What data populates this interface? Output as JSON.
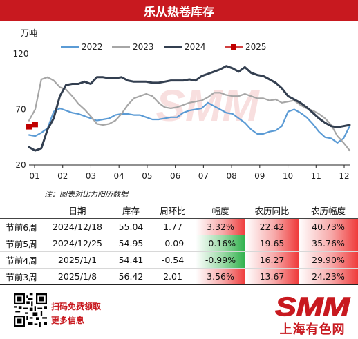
{
  "header": {
    "title": "乐从热卷库存"
  },
  "chart_data": {
    "type": "line",
    "ylabel": "万吨",
    "ylim": [
      20,
      120
    ],
    "yticks": [
      20,
      70,
      120
    ],
    "xlim": [
      1,
      53
    ],
    "x_tick_labels": [
      "01",
      "02",
      "03",
      "04",
      "05",
      "06",
      "07",
      "08",
      "09",
      "10",
      "11",
      "12"
    ],
    "legend_position": "top",
    "watermark": "SMM",
    "series": [
      {
        "name": "2022",
        "color": "#5b9bd5",
        "width": 2.2,
        "marker": false,
        "x": [
          1,
          2,
          3,
          4,
          5,
          6,
          7,
          8,
          9,
          10,
          11,
          12,
          13,
          14,
          15,
          16,
          17,
          18,
          19,
          20,
          21,
          22,
          23,
          24,
          25,
          26,
          27,
          28,
          29,
          30,
          31,
          32,
          33,
          34,
          35,
          36,
          37,
          38,
          39,
          40,
          41,
          42,
          43,
          44,
          45,
          46,
          47,
          48,
          49,
          50,
          51,
          52,
          53
        ],
        "values": [
          47,
          46,
          49,
          53,
          68,
          71,
          69,
          67,
          66,
          64,
          62,
          60,
          61,
          62,
          65,
          66,
          66,
          65,
          65,
          63,
          61,
          61,
          62,
          63,
          63,
          67,
          69,
          70,
          71,
          76,
          73,
          70,
          67,
          66,
          62,
          58,
          52,
          48,
          48,
          50,
          51,
          55,
          68,
          70,
          67,
          63,
          57,
          50,
          45,
          44,
          40,
          44,
          55
        ]
      },
      {
        "name": "2023",
        "color": "#a6a6a6",
        "width": 2.2,
        "marker": false,
        "x": [
          1,
          2,
          3,
          4,
          5,
          6,
          7,
          8,
          9,
          10,
          11,
          12,
          13,
          14,
          15,
          16,
          17,
          18,
          19,
          20,
          21,
          22,
          23,
          24,
          25,
          26,
          27,
          28,
          29,
          30,
          31,
          32,
          33,
          34,
          35,
          36,
          37,
          38,
          39,
          40,
          41,
          42,
          43,
          44,
          45,
          46,
          47,
          48,
          49,
          50,
          51,
          52,
          53
        ],
        "values": [
          60,
          70,
          97,
          99,
          96,
          90,
          88,
          82,
          75,
          70,
          64,
          57,
          56,
          57,
          60,
          66,
          74,
          80,
          82,
          84,
          82,
          76,
          72,
          71,
          72,
          74,
          76,
          77,
          78,
          81,
          85,
          85,
          83,
          82,
          82,
          84,
          82,
          80,
          80,
          78,
          79,
          76,
          77,
          78,
          74,
          71,
          69,
          66,
          62,
          56,
          46,
          40,
          33
        ]
      },
      {
        "name": "2024",
        "color": "#333f50",
        "width": 3,
        "marker": false,
        "x": [
          1,
          2,
          3,
          4,
          5,
          6,
          7,
          8,
          9,
          10,
          11,
          12,
          13,
          14,
          15,
          16,
          17,
          18,
          19,
          20,
          21,
          22,
          23,
          24,
          25,
          26,
          27,
          28,
          29,
          30,
          31,
          32,
          33,
          34,
          35,
          36,
          37,
          38,
          39,
          40,
          41,
          42,
          43,
          44,
          45,
          46,
          47,
          48,
          49,
          50,
          51,
          52,
          53
        ],
        "values": [
          36,
          33,
          35,
          52,
          62,
          82,
          92,
          93,
          93,
          95,
          93,
          99,
          99,
          98,
          98,
          99,
          96,
          95,
          95,
          95,
          94,
          94,
          95,
          96,
          96,
          96,
          97,
          96,
          100,
          102,
          104,
          106,
          109,
          107,
          104,
          108,
          103,
          101,
          100,
          97,
          94,
          89,
          82,
          79,
          76,
          72,
          67,
          62,
          58,
          55,
          54,
          55,
          56
        ]
      },
      {
        "name": "2025",
        "color": "#c00000",
        "width": 1.6,
        "marker": true,
        "x": [
          1,
          2
        ],
        "values": [
          54.41,
          56.42
        ]
      }
    ]
  },
  "note": "注：图表对比为阳历数据",
  "table": {
    "headers": [
      "",
      "日期",
      "库存",
      "周环比",
      "幅度",
      "农历同比",
      "农历幅度"
    ],
    "rows": [
      [
        "节前6周",
        "2024/12/18",
        "55.04",
        "1.77",
        "3.32%",
        "22.42",
        "40.73%"
      ],
      [
        "节前5周",
        "2024/12/25",
        "54.95",
        "-0.09",
        "-0.16%",
        "19.65",
        "35.76%"
      ],
      [
        "节前4周",
        "2025/1/1",
        "54.41",
        "-0.54",
        "-0.99%",
        "16.27",
        "29.90%"
      ],
      [
        "节前3周",
        "2025/1/8",
        "56.42",
        "2.01",
        "3.56%",
        "13.67",
        "24.23%"
      ]
    ],
    "cell_colors": {
      "positive": "#ef3b3b",
      "negative": "#2fb04b"
    }
  },
  "footer": {
    "promo_line1": "扫码免费领取",
    "promo_line2": "更多信息",
    "logo": "SMM",
    "logo_cn": "上海有色网",
    "brand_color": "#c8191f"
  }
}
